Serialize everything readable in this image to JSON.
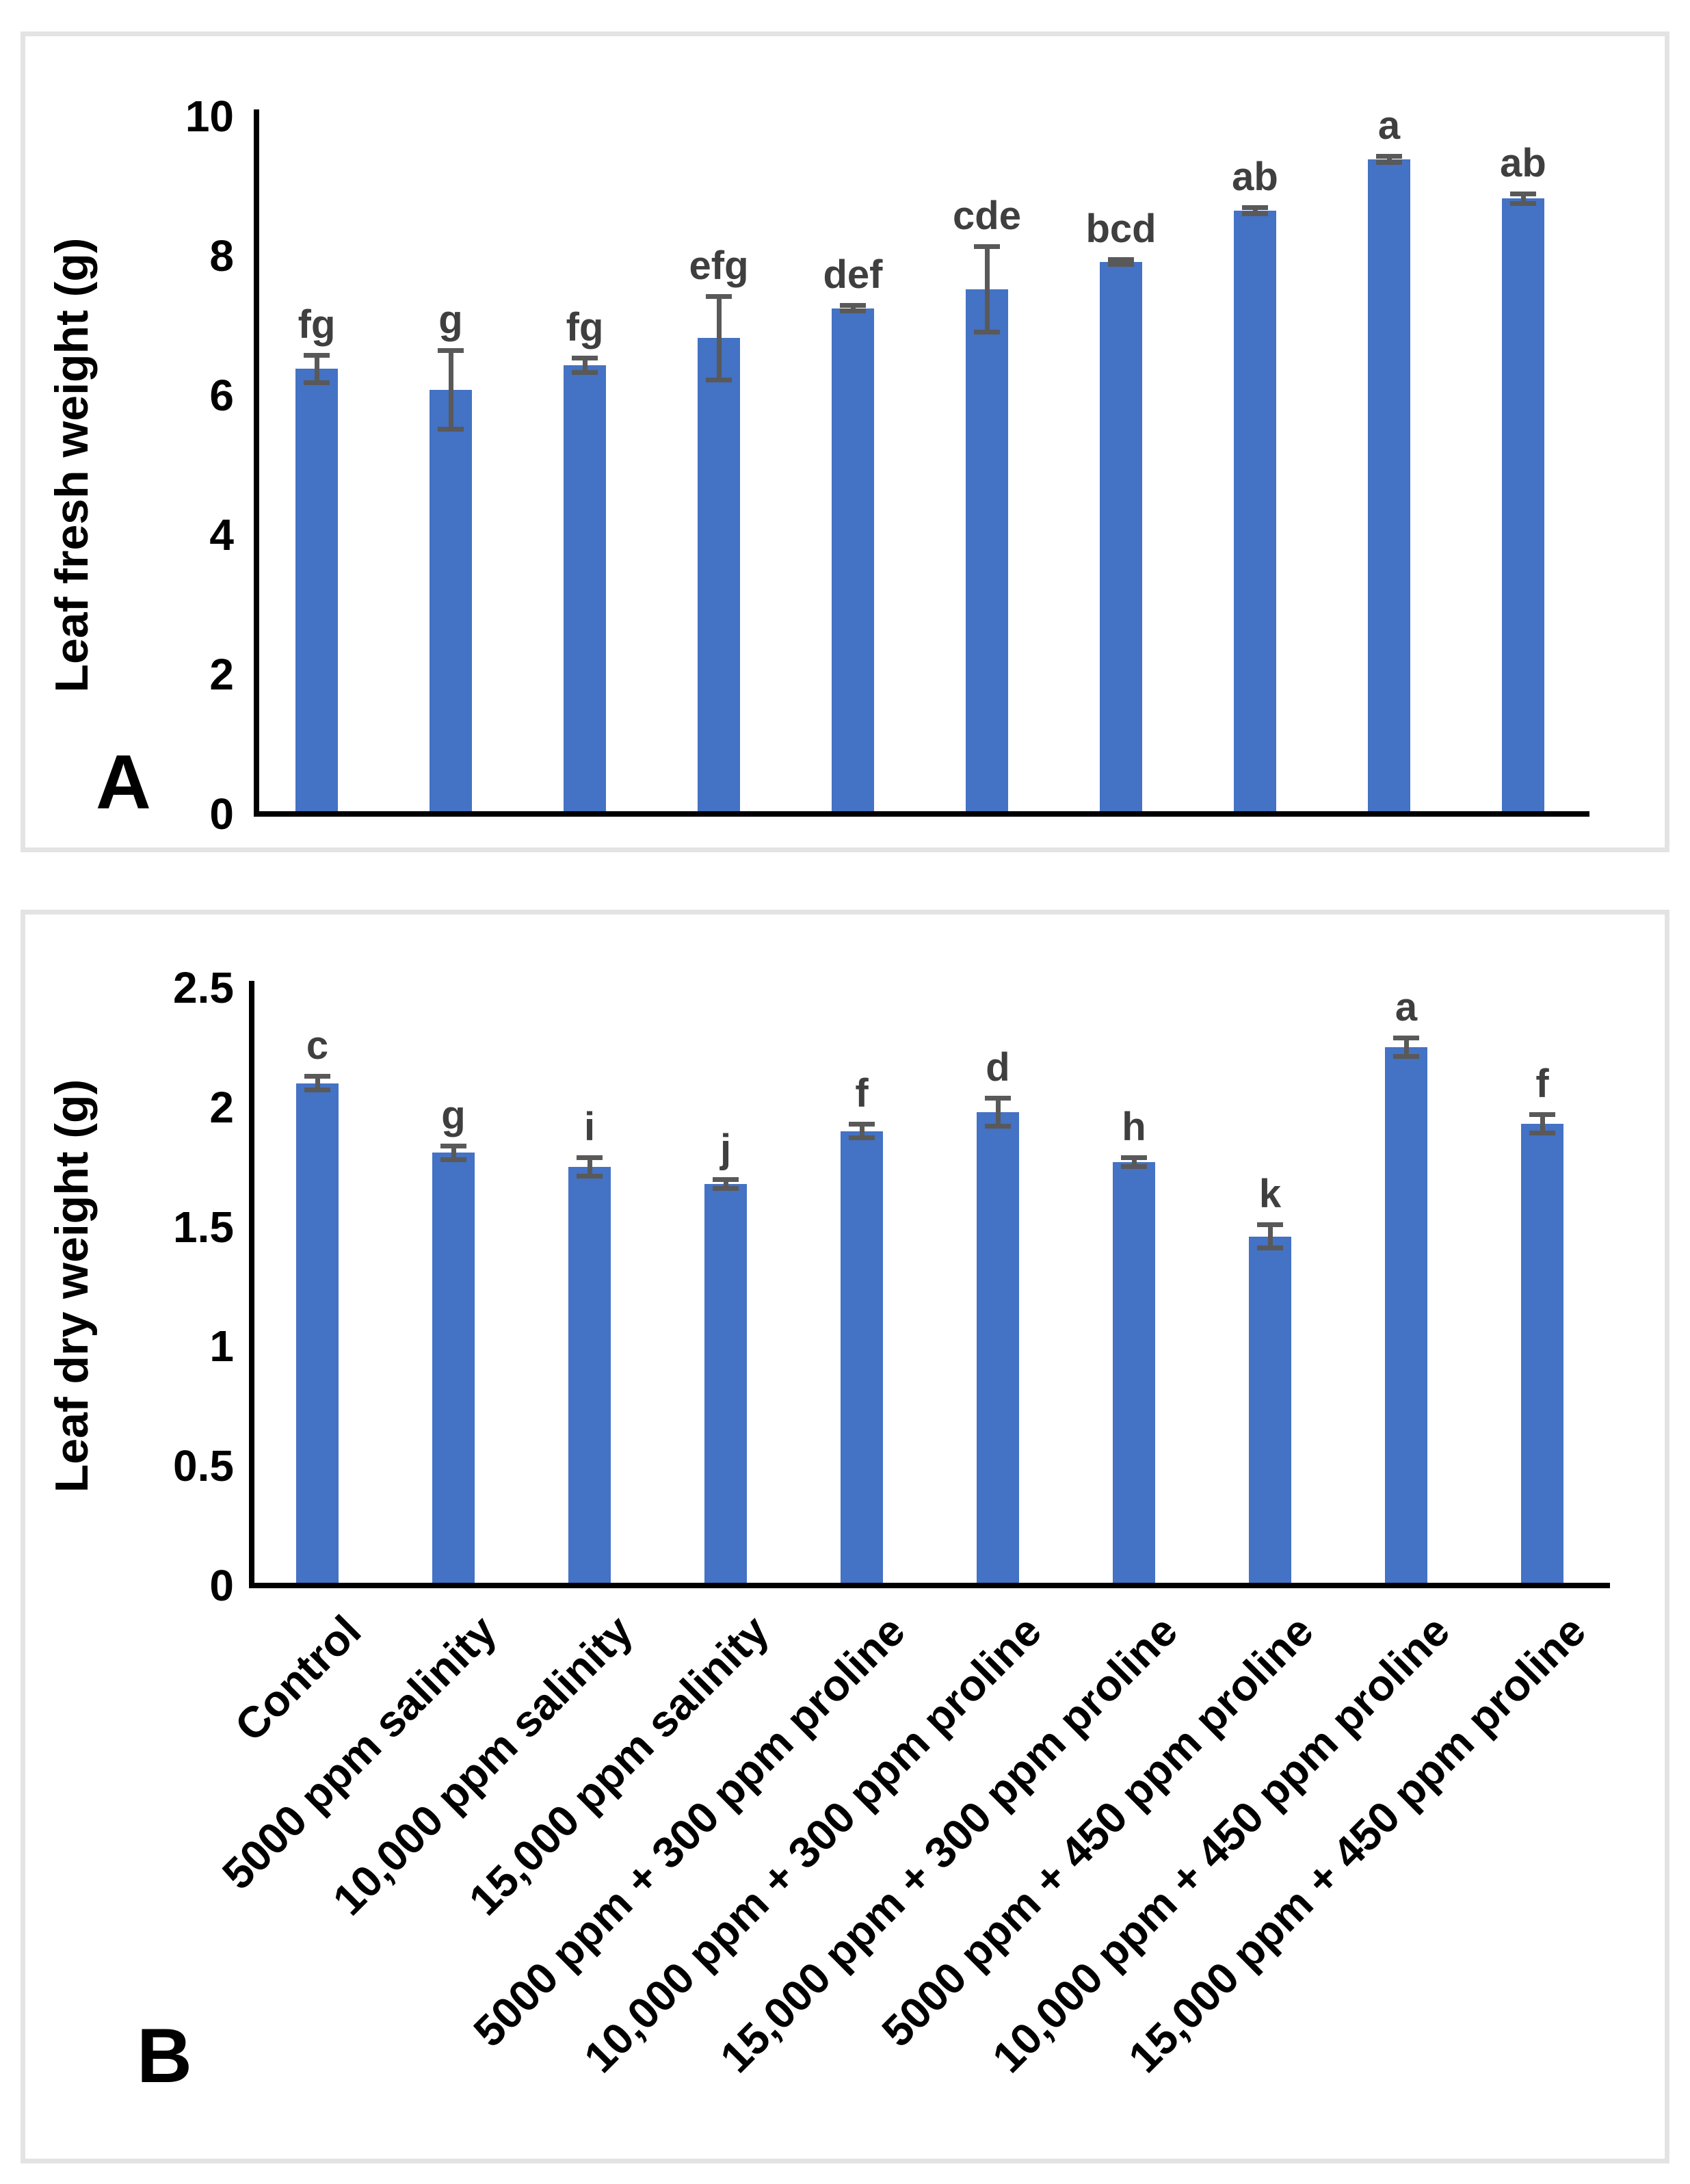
{
  "figure": {
    "panel_a_letter": "A",
    "panel_b_letter": "B"
  },
  "colors": {
    "bar": "#4472C4",
    "error_bar": "#595959",
    "sig_letter": "#3f3f3f",
    "axis": "#000000",
    "panel_border": "#e3e3e3",
    "background": "#ffffff"
  },
  "chart_data": [
    {
      "type": "bar",
      "panel": "A",
      "title": "",
      "xlabel": "",
      "ylabel": "Leaf fresh weight (g)",
      "ylim": [
        0,
        10
      ],
      "yticks": [
        "0",
        "2",
        "4",
        "6",
        "8",
        "10"
      ],
      "grid": false,
      "legend": "none",
      "x_tick_labels_shown": false,
      "categories": [
        "Control",
        "5000 ppm salinity",
        "10,000 ppm salinity",
        "15,000 ppm salinity",
        "5000 ppm + 300 ppm proline",
        "10,000 ppm + 300 ppm proline",
        "15,000 ppm + 300 ppm proline",
        "5000 ppm + 450 ppm proline",
        "10,000 ppm + 450 ppm proline",
        "15,000 ppm + 450 ppm proline"
      ],
      "values": [
        6.38,
        6.08,
        6.43,
        6.82,
        7.25,
        7.52,
        7.91,
        8.65,
        9.38,
        8.82
      ],
      "errors": [
        0.2,
        0.57,
        0.11,
        0.6,
        0.04,
        0.62,
        0.04,
        0.05,
        0.05,
        0.07
      ],
      "sig_letters": [
        "fg",
        "g",
        "fg",
        "efg",
        "def",
        "cde",
        "bcd",
        "ab",
        "a",
        "ab"
      ]
    },
    {
      "type": "bar",
      "panel": "B",
      "title": "",
      "xlabel": "",
      "ylabel": "Leaf dry weight (g)",
      "ylim": [
        0,
        2.5
      ],
      "yticks": [
        "0",
        "0.5",
        "1",
        "1.5",
        "2",
        "2.5"
      ],
      "grid": false,
      "legend": "none",
      "x_tick_labels_shown": true,
      "categories": [
        "Control",
        "5000 ppm salinity",
        "10,000 ppm salinity",
        "15,000 ppm salinity",
        "5000 ppm + 300 ppm proline",
        "10,000 ppm + 300 ppm proline",
        "15,000 ppm + 300 ppm proline",
        "5000 ppm + 450 ppm proline",
        "10,000 ppm + 450 ppm proline",
        "15,000 ppm + 450 ppm proline"
      ],
      "values": [
        2.1,
        1.81,
        1.75,
        1.68,
        1.9,
        1.98,
        1.77,
        1.46,
        2.25,
        1.93
      ],
      "errors": [
        0.03,
        0.03,
        0.04,
        0.02,
        0.03,
        0.06,
        0.02,
        0.05,
        0.04,
        0.04
      ],
      "sig_letters": [
        "c",
        "g",
        "i",
        "j",
        "f",
        "d",
        "h",
        "k",
        "a",
        "f"
      ]
    }
  ]
}
